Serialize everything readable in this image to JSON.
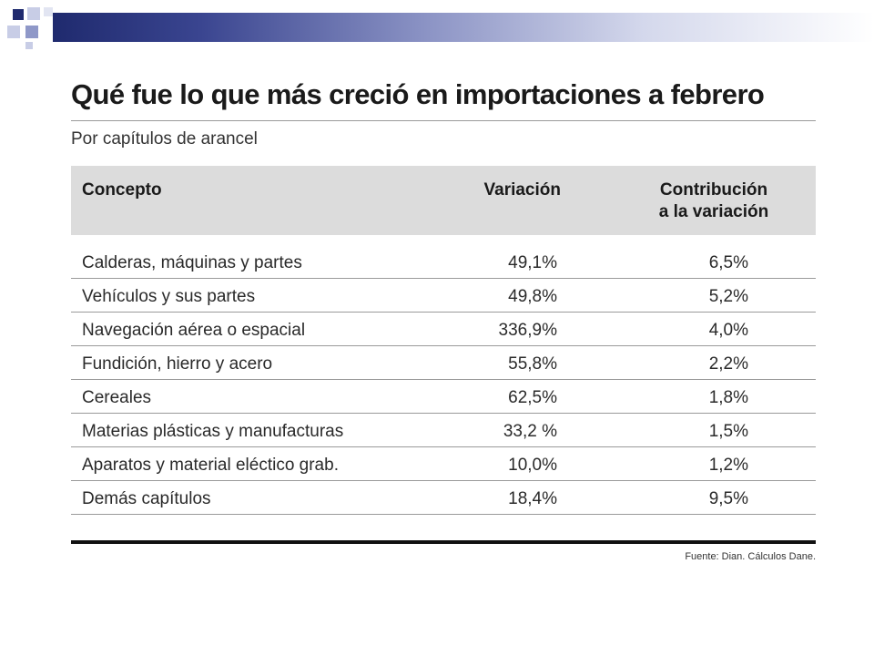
{
  "document": {
    "title": "Qué fue lo que más creció en importaciones a febrero",
    "subtitle": "Por capítulos de arancel",
    "source": "Fuente: Dian. Cálculos Dane."
  },
  "table": {
    "headers": {
      "concept": "Concepto",
      "variation": "Variación",
      "contribution_line1": "Contribución",
      "contribution_line2": "a la variación"
    },
    "rows": [
      {
        "concept": "Calderas, máquinas y partes",
        "variation": "49,1%",
        "contribution": "6,5%"
      },
      {
        "concept": "Vehículos y sus partes",
        "variation": "49,8%",
        "contribution": "5,2%"
      },
      {
        "concept": "Navegación aérea o espacial",
        "variation": "336,9%",
        "contribution": "4,0%"
      },
      {
        "concept": "Fundición, hierro y acero",
        "variation": "55,8%",
        "contribution": "2,2%"
      },
      {
        "concept": "Cereales",
        "variation": "62,5%",
        "contribution": "1,8%"
      },
      {
        "concept": "Materias plásticas y manufacturas",
        "variation": "33,2 %",
        "contribution": "1,5%"
      },
      {
        "concept": "Aparatos y material eléctico grab.",
        "variation": "10,0%",
        "contribution": "1,2%"
      },
      {
        "concept": "Demás capítulos",
        "variation": "18,4%",
        "contribution": "9,5%"
      }
    ]
  },
  "colors": {
    "header_band": "#1f2a6e",
    "table_header_bg": "#dcdcdc",
    "rule": "#9a9a9a"
  }
}
